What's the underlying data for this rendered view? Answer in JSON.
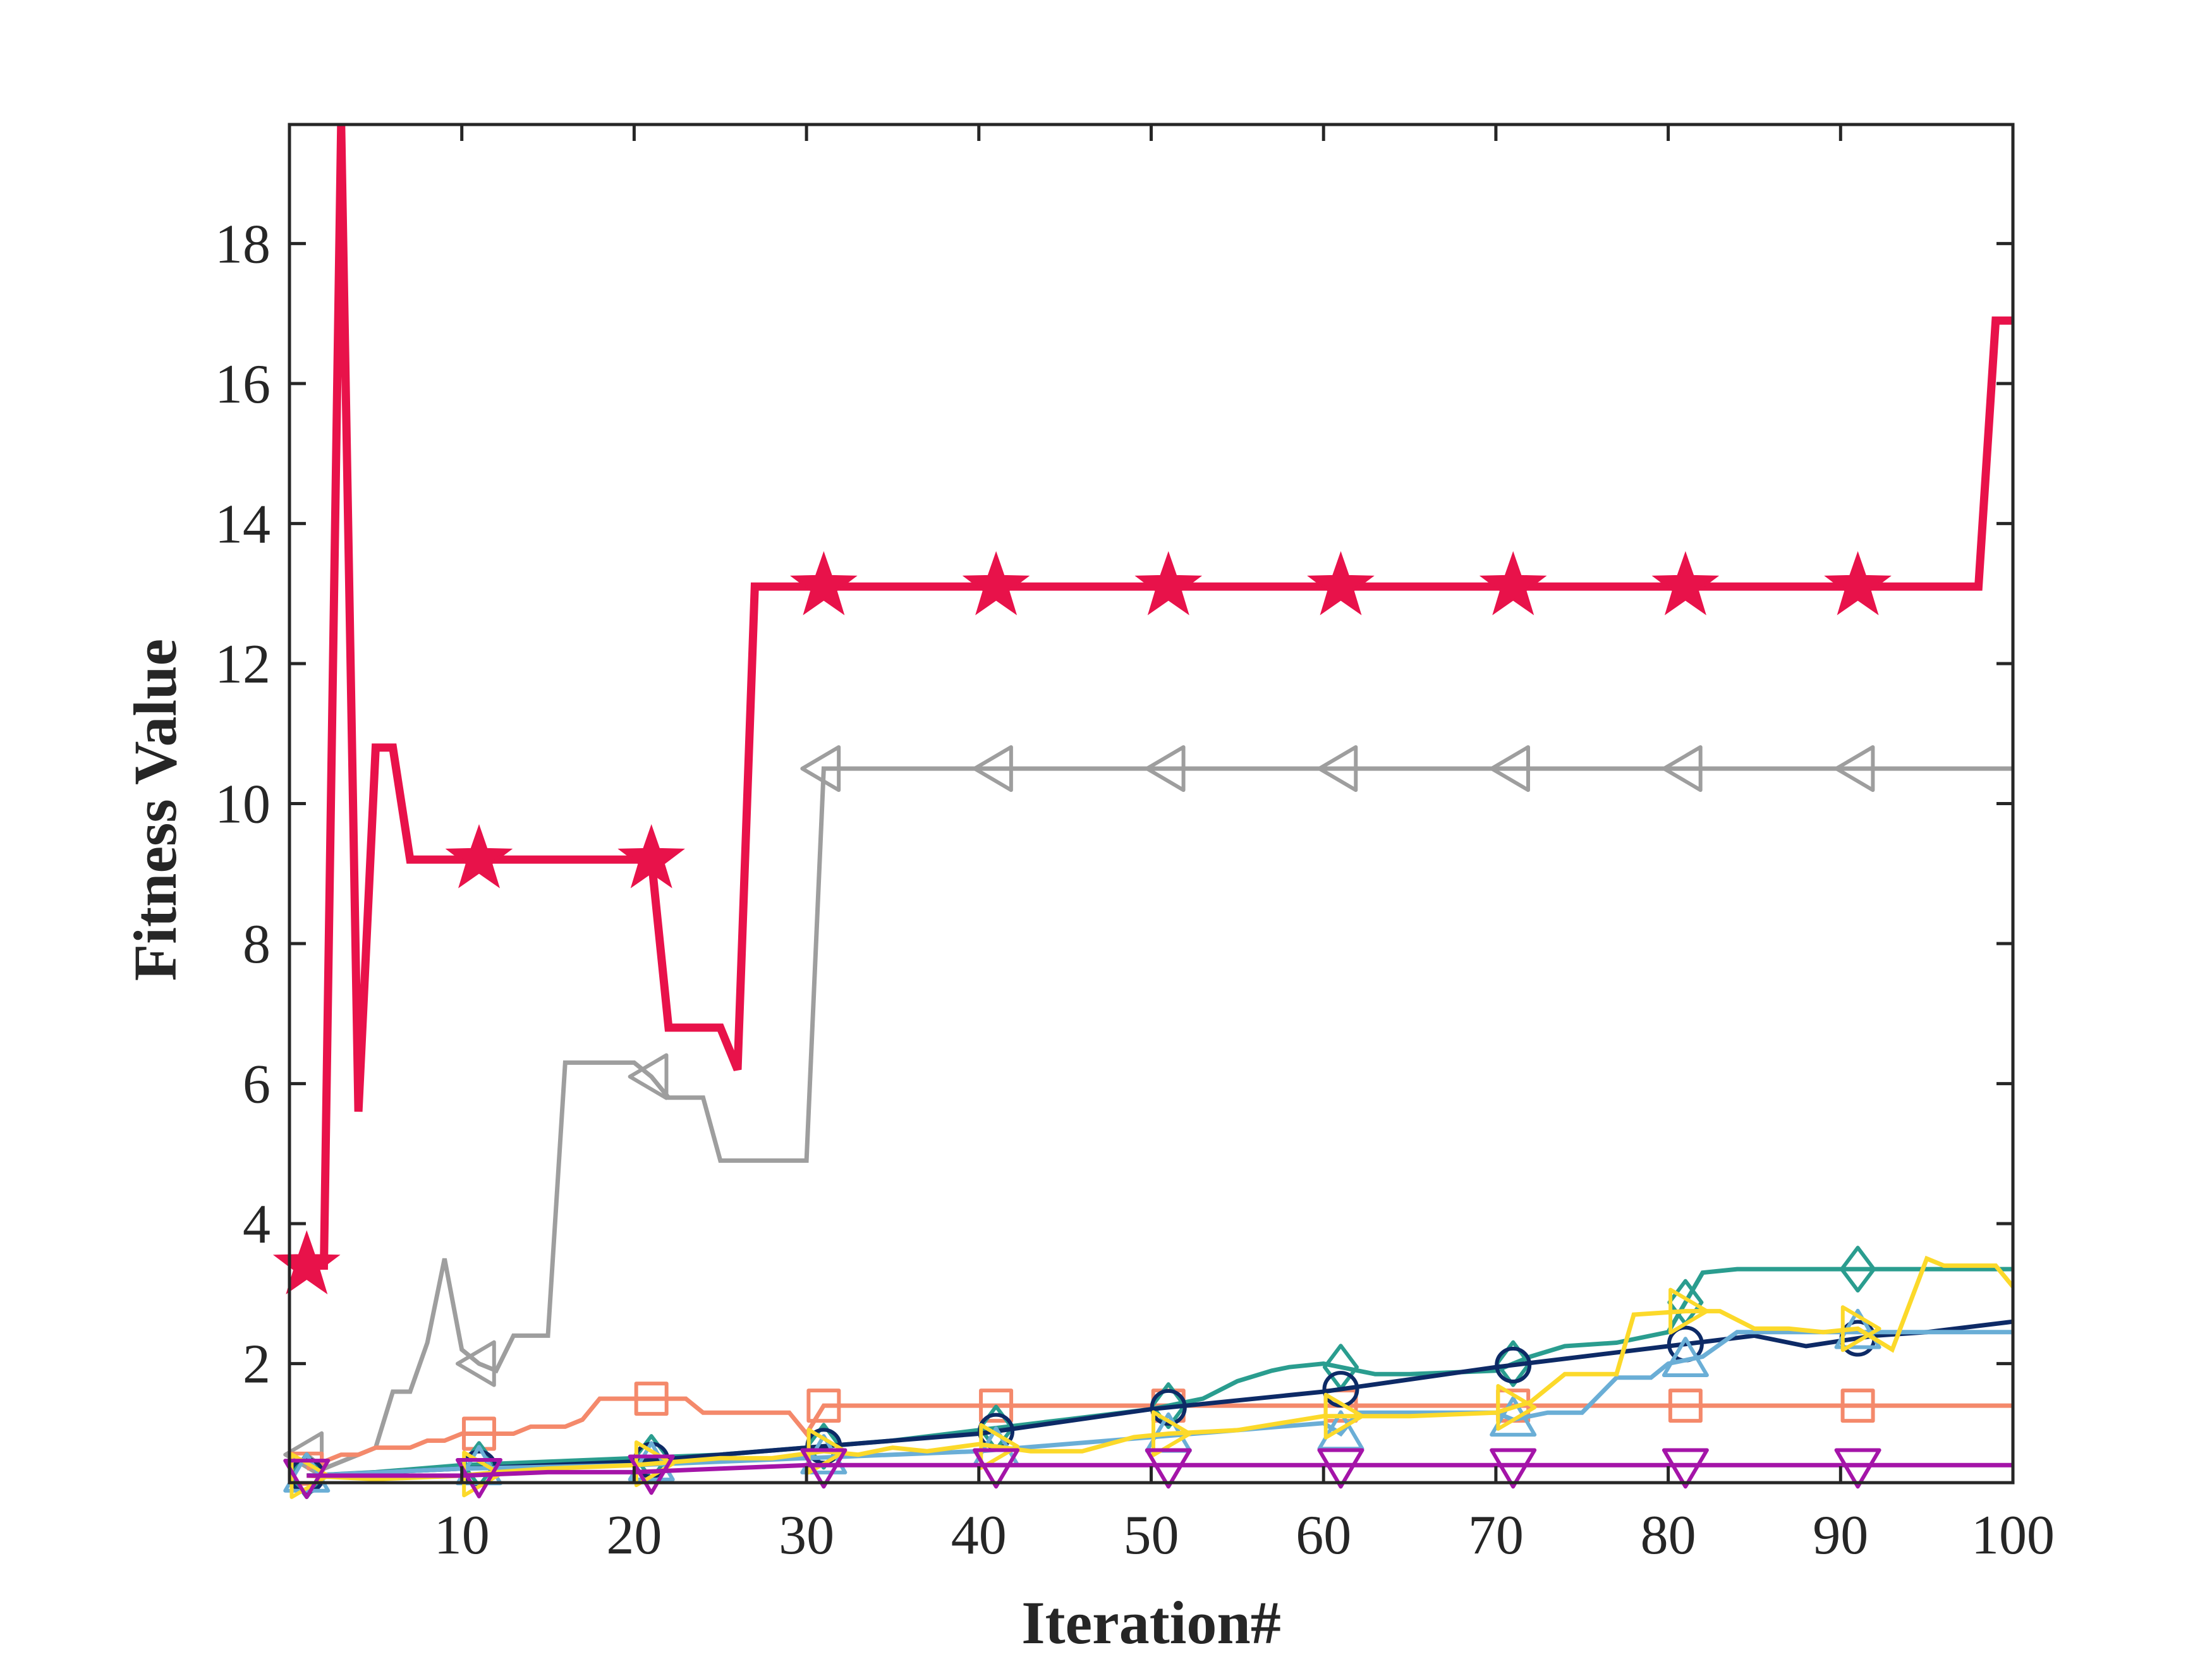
{
  "chart_data": {
    "type": "line",
    "title": "",
    "xlabel": "Iteration#",
    "ylabel": "Fitness Value",
    "xlim": [
      0,
      100
    ],
    "ylim": [
      0.3,
      19.7
    ],
    "grid": false,
    "x_ticks": [
      "10",
      "20",
      "30",
      "40",
      "50",
      "60",
      "70",
      "80",
      "90",
      "100"
    ],
    "y_ticks": [
      "2",
      "4",
      "6",
      "8",
      "10",
      "12",
      "14",
      "16",
      "18"
    ],
    "marker_x": [
      1,
      11,
      21,
      31,
      41,
      51,
      61,
      71,
      81,
      91
    ],
    "series": [
      {
        "color": "#e8124a",
        "marker": "star",
        "points": [
          [
            1,
            3.4
          ],
          [
            2,
            3.4
          ],
          [
            3,
            19.7
          ],
          [
            4,
            5.6
          ],
          [
            5,
            10.8
          ],
          [
            6,
            10.8
          ],
          [
            7,
            9.2
          ],
          [
            8,
            9.2
          ],
          [
            9,
            9.2
          ],
          [
            10,
            9.2
          ],
          [
            11,
            9.2
          ],
          [
            12,
            9.2
          ],
          [
            13,
            9.2
          ],
          [
            14,
            9.2
          ],
          [
            15,
            9.2
          ],
          [
            16,
            9.2
          ],
          [
            17,
            9.2
          ],
          [
            18,
            9.2
          ],
          [
            19,
            9.2
          ],
          [
            20,
            9.2
          ],
          [
            21,
            9.2
          ],
          [
            22,
            6.8
          ],
          [
            23,
            6.8
          ],
          [
            24,
            6.8
          ],
          [
            25,
            6.8
          ],
          [
            26,
            6.2
          ],
          [
            27,
            13.1
          ],
          [
            28,
            13.1
          ],
          [
            29,
            13.1
          ],
          [
            30,
            13.1
          ],
          [
            40,
            13.1
          ],
          [
            50,
            13.1
          ],
          [
            60,
            13.1
          ],
          [
            70,
            13.1
          ],
          [
            80,
            13.1
          ],
          [
            90,
            13.1
          ],
          [
            98,
            13.1
          ],
          [
            99,
            16.9
          ],
          [
            100,
            16.9
          ]
        ]
      },
      {
        "color": "#9e9e9e",
        "marker": "triangle-left",
        "points": [
          [
            1,
            0.7
          ],
          [
            2,
            0.5
          ],
          [
            3,
            0.6
          ],
          [
            4,
            0.7
          ],
          [
            5,
            0.8
          ],
          [
            6,
            1.6
          ],
          [
            7,
            1.6
          ],
          [
            8,
            2.3
          ],
          [
            9,
            3.5
          ],
          [
            10,
            2.2
          ],
          [
            11,
            2.0
          ],
          [
            12,
            1.9
          ],
          [
            13,
            2.4
          ],
          [
            14,
            2.4
          ],
          [
            15,
            2.4
          ],
          [
            16,
            6.3
          ],
          [
            17,
            6.3
          ],
          [
            18,
            6.3
          ],
          [
            19,
            6.3
          ],
          [
            20,
            6.3
          ],
          [
            21,
            6.1
          ],
          [
            22,
            5.8
          ],
          [
            23,
            5.8
          ],
          [
            24,
            5.8
          ],
          [
            25,
            4.9
          ],
          [
            26,
            4.9
          ],
          [
            27,
            4.9
          ],
          [
            28,
            4.9
          ],
          [
            29,
            4.9
          ],
          [
            30,
            4.9
          ],
          [
            31,
            10.5
          ],
          [
            40,
            10.5
          ],
          [
            50,
            10.5
          ],
          [
            60,
            10.5
          ],
          [
            70,
            10.5
          ],
          [
            80,
            10.5
          ],
          [
            90,
            10.5
          ],
          [
            100,
            10.5
          ]
        ]
      },
      {
        "color": "#f4896b",
        "marker": "square",
        "points": [
          [
            1,
            0.5
          ],
          [
            2,
            0.6
          ],
          [
            3,
            0.7
          ],
          [
            4,
            0.7
          ],
          [
            5,
            0.8
          ],
          [
            6,
            0.8
          ],
          [
            7,
            0.8
          ],
          [
            8,
            0.9
          ],
          [
            9,
            0.9
          ],
          [
            10,
            1.0
          ],
          [
            11,
            1.0
          ],
          [
            12,
            1.0
          ],
          [
            13,
            1.0
          ],
          [
            14,
            1.1
          ],
          [
            15,
            1.1
          ],
          [
            16,
            1.1
          ],
          [
            17,
            1.2
          ],
          [
            18,
            1.5
          ],
          [
            19,
            1.5
          ],
          [
            20,
            1.5
          ],
          [
            21,
            1.5
          ],
          [
            22,
            1.5
          ],
          [
            23,
            1.5
          ],
          [
            24,
            1.3
          ],
          [
            25,
            1.3
          ],
          [
            26,
            1.3
          ],
          [
            27,
            1.3
          ],
          [
            28,
            1.3
          ],
          [
            29,
            1.3
          ],
          [
            30,
            1.0
          ],
          [
            31,
            1.4
          ],
          [
            40,
            1.4
          ],
          [
            50,
            1.4
          ],
          [
            60,
            1.4
          ],
          [
            70,
            1.4
          ],
          [
            80,
            1.4
          ],
          [
            90,
            1.4
          ],
          [
            100,
            1.4
          ]
        ]
      },
      {
        "color": "#2a9d8f",
        "marker": "diamond",
        "points": [
          [
            1,
            0.4
          ],
          [
            5,
            0.45
          ],
          [
            10,
            0.55
          ],
          [
            15,
            0.6
          ],
          [
            20,
            0.65
          ],
          [
            25,
            0.7
          ],
          [
            30,
            0.8
          ],
          [
            35,
            0.9
          ],
          [
            40,
            1.05
          ],
          [
            45,
            1.2
          ],
          [
            50,
            1.35
          ],
          [
            53,
            1.5
          ],
          [
            55,
            1.75
          ],
          [
            57,
            1.9
          ],
          [
            58,
            1.95
          ],
          [
            60,
            2.0
          ],
          [
            63,
            1.85
          ],
          [
            65,
            1.85
          ],
          [
            70,
            1.9
          ],
          [
            72,
            2.1
          ],
          [
            74,
            2.25
          ],
          [
            77,
            2.3
          ],
          [
            80,
            2.45
          ],
          [
            82,
            3.3
          ],
          [
            84,
            3.35
          ],
          [
            90,
            3.35
          ],
          [
            95,
            3.35
          ],
          [
            100,
            3.35
          ]
        ]
      },
      {
        "color": "#0d2a66",
        "marker": "circle",
        "points": [
          [
            1,
            0.4
          ],
          [
            10,
            0.5
          ],
          [
            20,
            0.6
          ],
          [
            30,
            0.8
          ],
          [
            40,
            1.0
          ],
          [
            50,
            1.35
          ],
          [
            60,
            1.6
          ],
          [
            70,
            1.95
          ],
          [
            80,
            2.25
          ],
          [
            85,
            2.4
          ],
          [
            88,
            2.25
          ],
          [
            92,
            2.4
          ],
          [
            95,
            2.45
          ],
          [
            100,
            2.6
          ]
        ]
      },
      {
        "color": "#6aaed6",
        "marker": "triangle-up",
        "points": [
          [
            1,
            0.4
          ],
          [
            10,
            0.5
          ],
          [
            20,
            0.55
          ],
          [
            30,
            0.65
          ],
          [
            40,
            0.75
          ],
          [
            50,
            0.95
          ],
          [
            60,
            1.15
          ],
          [
            61,
            1.0
          ],
          [
            62,
            1.3
          ],
          [
            70,
            1.3
          ],
          [
            71,
            1.2
          ],
          [
            73,
            1.3
          ],
          [
            75,
            1.3
          ],
          [
            77,
            1.8
          ],
          [
            79,
            1.8
          ],
          [
            80,
            2.0
          ],
          [
            82,
            2.1
          ],
          [
            84,
            2.45
          ],
          [
            90,
            2.45
          ],
          [
            100,
            2.45
          ]
        ]
      },
      {
        "color": "#fcd92a",
        "marker": "triangle-right",
        "points": [
          [
            1,
            0.4
          ],
          [
            5,
            0.35
          ],
          [
            10,
            0.4
          ],
          [
            12,
            0.45
          ],
          [
            15,
            0.5
          ],
          [
            20,
            0.55
          ],
          [
            25,
            0.65
          ],
          [
            28,
            0.65
          ],
          [
            31,
            0.75
          ],
          [
            33,
            0.7
          ],
          [
            35,
            0.8
          ],
          [
            37,
            0.75
          ],
          [
            40,
            0.85
          ],
          [
            43,
            0.75
          ],
          [
            46,
            0.75
          ],
          [
            49,
            0.95
          ],
          [
            51,
            1.0
          ],
          [
            55,
            1.05
          ],
          [
            60,
            1.25
          ],
          [
            65,
            1.25
          ],
          [
            70,
            1.3
          ],
          [
            72,
            1.45
          ],
          [
            74,
            1.85
          ],
          [
            77,
            1.85
          ],
          [
            78,
            2.7
          ],
          [
            81,
            2.75
          ],
          [
            83,
            2.75
          ],
          [
            85,
            2.5
          ],
          [
            87,
            2.5
          ],
          [
            89,
            2.45
          ],
          [
            91,
            2.5
          ],
          [
            93,
            2.2
          ],
          [
            95,
            3.5
          ],
          [
            96,
            3.4
          ],
          [
            99,
            3.4
          ],
          [
            100,
            3.1
          ]
        ]
      },
      {
        "color": "#a414a8",
        "marker": "triangle-down",
        "points": [
          [
            1,
            0.4
          ],
          [
            5,
            0.4
          ],
          [
            10,
            0.4
          ],
          [
            15,
            0.45
          ],
          [
            20,
            0.45
          ],
          [
            25,
            0.5
          ],
          [
            30,
            0.55
          ],
          [
            40,
            0.55
          ],
          [
            50,
            0.55
          ],
          [
            60,
            0.55
          ],
          [
            70,
            0.55
          ],
          [
            80,
            0.55
          ],
          [
            90,
            0.55
          ],
          [
            100,
            0.55
          ]
        ]
      }
    ]
  }
}
